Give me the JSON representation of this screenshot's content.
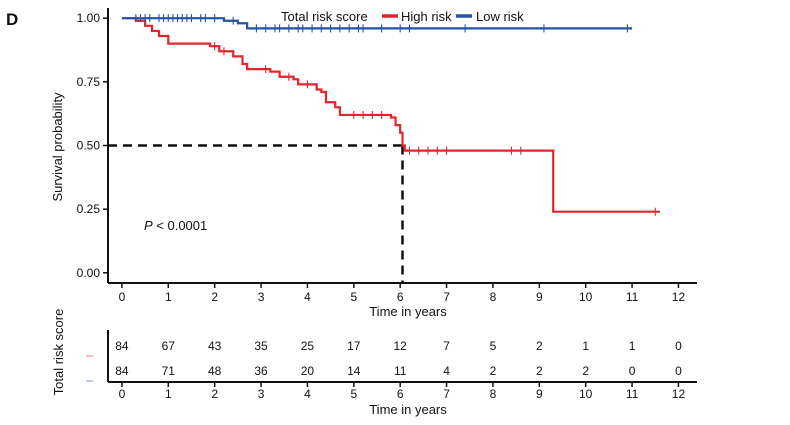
{
  "panel_label": "D",
  "colors": {
    "high": "#e0262c",
    "low": "#2553a3",
    "axis": "#111111",
    "median": "#111111"
  },
  "chart_data": {
    "type": "line",
    "subtype": "kaplan-meier",
    "xlabel": "Time in years",
    "ylabel": "Survival probability",
    "xlim": [
      -0.3,
      12.4
    ],
    "ylim": [
      -0.04,
      1.04
    ],
    "x_ticks": [
      0,
      1,
      2,
      3,
      4,
      5,
      6,
      7,
      8,
      9,
      10,
      11,
      12
    ],
    "y_ticks": [
      0.0,
      0.25,
      0.5,
      0.75,
      1.0
    ],
    "y_tick_labels": [
      "0.00",
      "0.25",
      "0.50",
      "0.75",
      "1.00"
    ],
    "legend": {
      "title": "Total risk score",
      "position": "top",
      "entries": [
        "High risk",
        "Low risk"
      ]
    },
    "annotation": {
      "p_label": "P",
      "p_text": " < 0.0001"
    },
    "median_survival": {
      "x": 6.05,
      "y": 0.5
    },
    "series": [
      {
        "name": "High risk",
        "color_key": "high",
        "steps": [
          [
            0,
            1.0
          ],
          [
            0.3,
            0.99
          ],
          [
            0.5,
            0.97
          ],
          [
            0.65,
            0.95
          ],
          [
            0.8,
            0.93
          ],
          [
            1.0,
            0.9
          ],
          [
            1.9,
            0.89
          ],
          [
            2.1,
            0.87
          ],
          [
            2.4,
            0.85
          ],
          [
            2.6,
            0.82
          ],
          [
            2.7,
            0.8
          ],
          [
            3.2,
            0.79
          ],
          [
            3.4,
            0.77
          ],
          [
            3.7,
            0.76
          ],
          [
            3.8,
            0.74
          ],
          [
            4.2,
            0.72
          ],
          [
            4.3,
            0.71
          ],
          [
            4.4,
            0.67
          ],
          [
            4.6,
            0.65
          ],
          [
            4.7,
            0.62
          ],
          [
            5.8,
            0.61
          ],
          [
            5.9,
            0.58
          ],
          [
            6.0,
            0.55
          ],
          [
            6.05,
            0.5
          ],
          [
            6.1,
            0.48
          ],
          [
            9.3,
            0.24
          ],
          [
            11.6,
            0.24
          ]
        ],
        "censors": [
          [
            2.0,
            0.89
          ],
          [
            2.2,
            0.87
          ],
          [
            3.1,
            0.8
          ],
          [
            3.6,
            0.77
          ],
          [
            4.0,
            0.74
          ],
          [
            5.0,
            0.62
          ],
          [
            5.2,
            0.62
          ],
          [
            5.4,
            0.62
          ],
          [
            5.6,
            0.62
          ],
          [
            6.2,
            0.48
          ],
          [
            6.4,
            0.48
          ],
          [
            6.6,
            0.48
          ],
          [
            6.8,
            0.48
          ],
          [
            7.0,
            0.48
          ],
          [
            8.4,
            0.48
          ],
          [
            8.6,
            0.48
          ],
          [
            11.5,
            0.24
          ]
        ]
      },
      {
        "name": "Low risk",
        "color_key": "low",
        "steps": [
          [
            0,
            1.0
          ],
          [
            2.2,
            0.99
          ],
          [
            2.5,
            0.98
          ],
          [
            2.7,
            0.96
          ],
          [
            11.0,
            0.96
          ]
        ],
        "censors": [
          [
            0.3,
            1.0
          ],
          [
            0.4,
            1.0
          ],
          [
            0.5,
            1.0
          ],
          [
            0.6,
            1.0
          ],
          [
            0.8,
            1.0
          ],
          [
            0.9,
            1.0
          ],
          [
            1.0,
            1.0
          ],
          [
            1.1,
            1.0
          ],
          [
            1.2,
            1.0
          ],
          [
            1.3,
            1.0
          ],
          [
            1.4,
            1.0
          ],
          [
            1.5,
            1.0
          ],
          [
            1.7,
            1.0
          ],
          [
            1.8,
            1.0
          ],
          [
            2.0,
            1.0
          ],
          [
            2.4,
            0.99
          ],
          [
            2.9,
            0.96
          ],
          [
            3.1,
            0.96
          ],
          [
            3.3,
            0.96
          ],
          [
            3.4,
            0.96
          ],
          [
            3.6,
            0.96
          ],
          [
            3.8,
            0.96
          ],
          [
            3.9,
            0.96
          ],
          [
            4.1,
            0.96
          ],
          [
            4.3,
            0.96
          ],
          [
            4.5,
            0.96
          ],
          [
            4.7,
            0.96
          ],
          [
            4.9,
            0.96
          ],
          [
            5.1,
            0.96
          ],
          [
            5.2,
            0.96
          ],
          [
            5.6,
            0.96
          ],
          [
            6.0,
            0.96
          ],
          [
            6.2,
            0.96
          ],
          [
            7.4,
            0.96
          ],
          [
            9.1,
            0.96
          ],
          [
            10.9,
            0.96
          ]
        ]
      }
    ]
  },
  "risk_table": {
    "title": "Total risk score",
    "xlabel": "Time in years",
    "times": [
      0,
      1,
      2,
      3,
      4,
      5,
      6,
      7,
      8,
      9,
      10,
      11,
      12
    ],
    "rows": [
      {
        "name": "High risk",
        "color_key": "high",
        "counts": [
          84,
          67,
          43,
          35,
          25,
          17,
          12,
          7,
          5,
          2,
          1,
          1,
          0
        ]
      },
      {
        "name": "Low risk",
        "color_key": "low",
        "counts": [
          84,
          71,
          48,
          36,
          20,
          14,
          11,
          4,
          2,
          2,
          2,
          0,
          0
        ]
      }
    ]
  }
}
